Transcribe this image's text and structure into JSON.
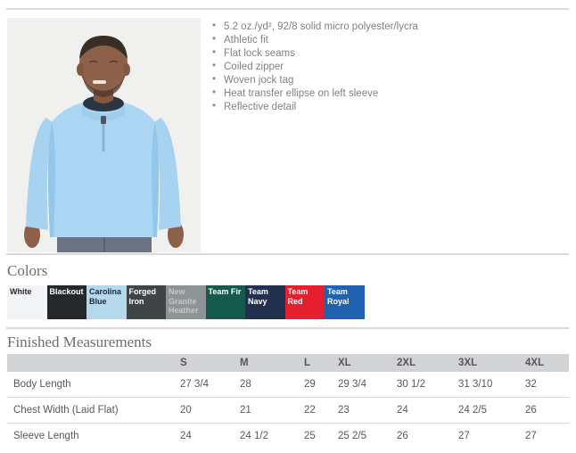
{
  "features": {
    "items": [
      "5.2 oz./yd², 92/8 solid micro polyester/lycra",
      "Athletic fit",
      "Flat lock seams",
      "Coiled zipper",
      "Woven jock tag",
      "Heat transfer ellipse on left sleeve",
      "Reflective detail"
    ]
  },
  "colors_section": {
    "title": "Colors",
    "swatches": [
      {
        "name": "White",
        "bg": "#f3f4f6",
        "text": "#27292b"
      },
      {
        "name": "Blackout",
        "bg": "#25282b",
        "text": "#ffffff"
      },
      {
        "name": "Carolina Blue",
        "bg": "#b4d9ec",
        "text": "#20293a"
      },
      {
        "name": "Forged Iron",
        "bg": "#3f4447",
        "text": "#ffffff"
      },
      {
        "name": "New Granite Heather",
        "bg": "#8e9396",
        "text": "#c4c7c9"
      },
      {
        "name": "Team Fir",
        "bg": "#165a4b",
        "text": "#ffffff"
      },
      {
        "name": "Team Navy",
        "bg": "#22304e",
        "text": "#ffffff"
      },
      {
        "name": "Team Red",
        "bg": "#e5202e",
        "text": "#ffffff"
      },
      {
        "name": "Team Royal",
        "bg": "#2062af",
        "text": "#ffffff"
      }
    ]
  },
  "measurements": {
    "title": "Finished Measurements",
    "size_columns": [
      "S",
      "M",
      "L",
      "XL",
      "2XL",
      "3XL",
      "4XL"
    ],
    "rows": [
      {
        "label": "Body Length",
        "values": [
          "27 3/4",
          "28",
          "29",
          "29 3/4",
          "30 1/2",
          "31 3/10",
          "32"
        ]
      },
      {
        "label": "Chest Width (Laid Flat)",
        "values": [
          "20",
          "21",
          "22",
          "23",
          "24",
          "24 2/5",
          "26"
        ]
      },
      {
        "label": "Sleeve Length",
        "values": [
          "24",
          "24 1/2",
          "25",
          "25 2/5",
          "26",
          "27",
          "27"
        ]
      }
    ]
  }
}
